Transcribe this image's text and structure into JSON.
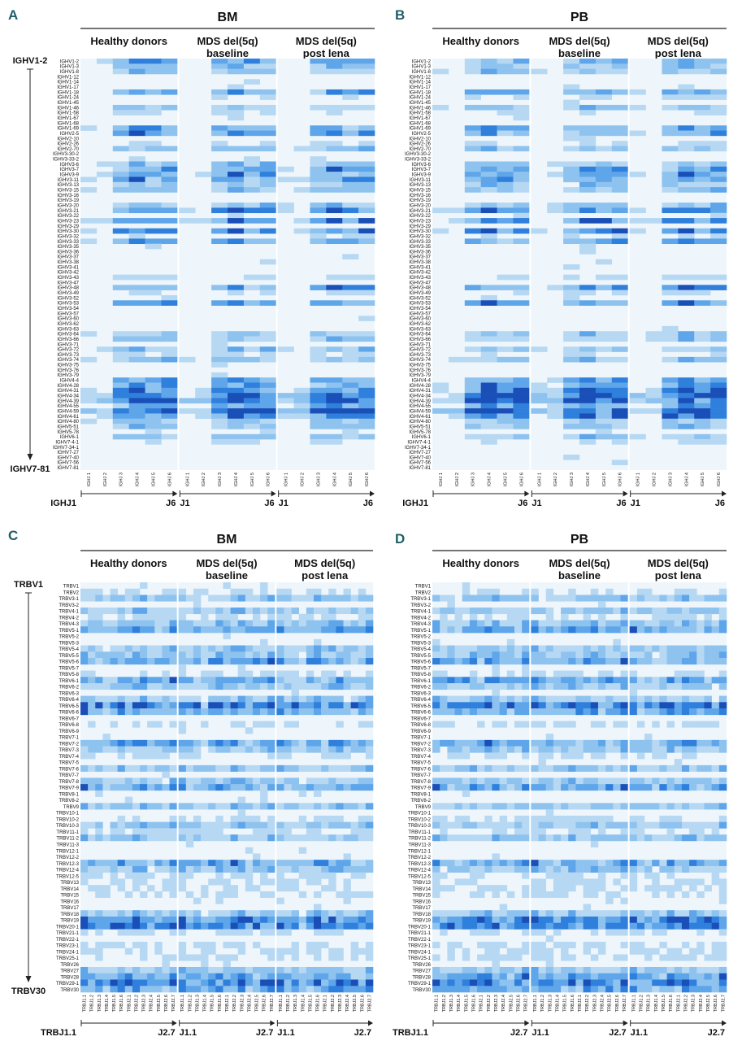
{
  "colors": {
    "empty": "#eef6fb",
    "levels": [
      "#eef6fb",
      "#b7d8f3",
      "#8fc3ef",
      "#5ea5ea",
      "#2f7fdc",
      "#1a4fb8"
    ]
  },
  "groups": [
    "Healthy donors",
    "MDS del(5q)\nbaseline",
    "MDS del(5q)\npost lena"
  ],
  "chart_data": [
    {
      "panel": "A",
      "title": "BM",
      "type": "heatmap",
      "family": "IGH",
      "y_axis_start": "IGHV1-2",
      "y_axis_end": "IGHV7-81",
      "x_axis_labels": [
        "IGHJ1",
        "J6",
        "J1",
        "J6",
        "J1",
        "J6"
      ],
      "columns": [
        "IGHJ 1",
        "IGHJ 2",
        "IGHJ 3",
        "IGHJ 4",
        "IGHJ 5",
        "IGHJ 6"
      ],
      "rows": [
        "IGHV1-2",
        "IGHV1-3",
        "IGHV1-8",
        "IGHV1-12",
        "IGHV1-14",
        "IGHV1-17",
        "IGHV1-18",
        "IGHV1-24",
        "IGHV1-45",
        "IGHV1-46",
        "IGHV1-58",
        "IGHV1-67",
        "IGHV1-68",
        "IGHV1-69",
        "IGHV2-5",
        "IGHV2-10",
        "IGHV2-26",
        "IGHV2-70",
        "IGHV3-30-2",
        "IGHV3-33-2",
        "IGHV3-6",
        "IGHV3-7",
        "IGHV3-9",
        "IGHV3-11",
        "IGHV3-13",
        "IGHV3-15",
        "IGHV3-16",
        "IGHV3-19",
        "IGHV3-20",
        "IGHV3-21",
        "IGHV3-22",
        "IGHV3-23",
        "IGHV3-29",
        "IGHV3-30",
        "IGHV3-32",
        "IGHV3-33",
        "IGHV3-35",
        "IGHV3-36",
        "IGHV3-37",
        "IGHV3-38",
        "IGHV3-41",
        "IGHV3-42",
        "IGHV3-43",
        "IGHV3-47",
        "IGHV3-48",
        "IGHV3-49",
        "IGHV3-52",
        "IGHV3-53",
        "IGHV3-54",
        "IGHV3-57",
        "IGHV3-60",
        "IGHV3-62",
        "IGHV3-63",
        "IGHV3-64",
        "IGHV3-66",
        "IGHV3-71",
        "IGHV3-72",
        "IGHV3-73",
        "IGHV3-74",
        "IGHV3-75",
        "IGHV3-76",
        "IGHV3-79",
        "IGHV4-4",
        "IGHV4-28",
        "IGHV4-31",
        "IGHV4-34",
        "IGHV4-39",
        "IGHV4-55",
        "IGHV4-59",
        "IGHV4-61",
        "IGHV4-80",
        "IGHV5-51",
        "IGHV5-78",
        "IGHV6-1",
        "IGHV7-4-1",
        "IGHV7-34-1",
        "IGHV7-27",
        "IGHV7-40",
        "IGHV7-56",
        "IGHV7-81"
      ]
    },
    {
      "panel": "B",
      "title": "PB",
      "type": "heatmap",
      "family": "IGH",
      "y_axis_start": "",
      "y_axis_end": "",
      "x_axis_labels": [
        "IGHJ1",
        "J6",
        "J1",
        "J6",
        "J1",
        "J6"
      ],
      "columns": [
        "IGHJ 1",
        "IGHJ 2",
        "IGHJ 3",
        "IGHJ 4",
        "IGHJ 5",
        "IGHJ 6"
      ],
      "rows": "same-as-A"
    },
    {
      "panel": "C",
      "title": "BM",
      "type": "heatmap",
      "family": "TRB",
      "y_axis_start": "TRBV1",
      "y_axis_end": "TRBV30",
      "x_axis_labels": [
        "TRBJ1.1",
        "J2.7",
        "J1.1",
        "J2.7",
        "J1.1",
        "J2.7"
      ],
      "columns": [
        "TRBJ1.1",
        "TRBJ1.2",
        "TRBJ1.3",
        "TRBJ1.4",
        "TRBJ1.5",
        "TRBJ1.6",
        "TRBJ2.1",
        "TRBJ2.2",
        "TRBJ2.3",
        "TRBJ2.4",
        "TRBJ2.5",
        "TRBJ2.6",
        "TRBJ2.7"
      ],
      "rows": [
        "TRBV1",
        "TRBV2",
        "TRBV3-1",
        "TRBV3-2",
        "TRBV4-1",
        "TRBV4-2",
        "TRBV4-3",
        "TRBV5-1",
        "TRBV5-2",
        "TRBV5-3",
        "TRBV5-4",
        "TRBV5-5",
        "TRBV5-6",
        "TRBV5-7",
        "TRBV5-8",
        "TRBV6-1",
        "TRBV6-2",
        "TRBV6-3",
        "TRBV6-4",
        "TRBV6-5",
        "TRBV6-6",
        "TRBV6-7",
        "TRBV6-8",
        "TRBV6-9",
        "TRBV7-1",
        "TRBV7-2",
        "TRBV7-3",
        "TRBV7-4",
        "TRBV7-5",
        "TRBV7-6",
        "TRBV7-7",
        "TRBV7-8",
        "TRBV7-9",
        "TRBV8-1",
        "TRBV8-2",
        "TRBV9",
        "TRBV10-1",
        "TRBV10-2",
        "TRBV10-3",
        "TRBV11-1",
        "TRBV11-2",
        "TRBV11-3",
        "TRBV12-1",
        "TRBV12-2",
        "TRBV12-3",
        "TRBV12-4",
        "TRBV12-5",
        "TRBV13",
        "TRBV14",
        "TRBV15",
        "TRBV16",
        "TRBV17",
        "TRBV18",
        "TRBV19",
        "TRBV20-1",
        "TRBV21-1",
        "TRBV22-1",
        "TRBV23-1",
        "TRBV24-1",
        "TRBV25-1",
        "TRBV26",
        "TRBV27",
        "TRBV28",
        "TRBV29-1",
        "TRBV30"
      ]
    },
    {
      "panel": "D",
      "title": "PB",
      "type": "heatmap",
      "family": "TRB",
      "y_axis_start": "",
      "y_axis_end": "",
      "x_axis_labels": [
        "TRBJ1.1",
        "J2.7",
        "J1.1",
        "J2.7",
        "J1.1",
        "J2.7"
      ],
      "columns": "same-as-C",
      "rows": "same-as-C"
    }
  ]
}
